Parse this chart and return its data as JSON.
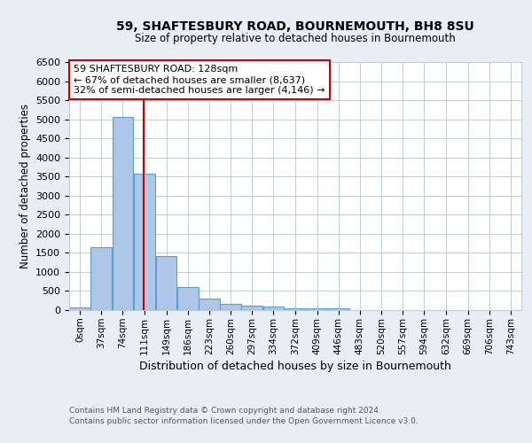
{
  "title1": "59, SHAFTESBURY ROAD, BOURNEMOUTH, BH8 8SU",
  "title2": "Size of property relative to detached houses in Bournemouth",
  "xlabel": "Distribution of detached houses by size in Bournemouth",
  "ylabel": "Number of detached properties",
  "bin_labels": [
    "0sqm",
    "37sqm",
    "74sqm",
    "111sqm",
    "149sqm",
    "186sqm",
    "223sqm",
    "260sqm",
    "297sqm",
    "334sqm",
    "372sqm",
    "409sqm",
    "446sqm",
    "483sqm",
    "520sqm",
    "557sqm",
    "594sqm",
    "632sqm",
    "669sqm",
    "706sqm",
    "743sqm"
  ],
  "bin_edges": [
    0,
    37,
    74,
    111,
    149,
    186,
    223,
    260,
    297,
    334,
    372,
    409,
    446,
    483,
    520,
    557,
    594,
    632,
    669,
    706,
    743,
    780
  ],
  "bar_values": [
    75,
    1650,
    5050,
    3580,
    1420,
    610,
    305,
    160,
    115,
    90,
    55,
    40,
    55,
    0,
    0,
    0,
    0,
    0,
    0,
    0,
    0
  ],
  "bar_color": "#aec6e8",
  "bar_edge_color": "#5a9fd4",
  "property_size": 128,
  "vline_color": "#cc0000",
  "annotation_text": "59 SHAFTESBURY ROAD: 128sqm\n← 67% of detached houses are smaller (8,637)\n32% of semi-detached houses are larger (4,146) →",
  "annotation_box_color": "white",
  "annotation_box_edge": "#cc0000",
  "ylim": [
    0,
    6500
  ],
  "yticks": [
    0,
    500,
    1000,
    1500,
    2000,
    2500,
    3000,
    3500,
    4000,
    4500,
    5000,
    5500,
    6000,
    6500
  ],
  "footer1": "Contains HM Land Registry data © Crown copyright and database right 2024.",
  "footer2": "Contains public sector information licensed under the Open Government Licence v3.0.",
  "background_color": "#e8eef4",
  "plot_bg_color": "#ffffff",
  "grid_color": "#c0ccd8"
}
